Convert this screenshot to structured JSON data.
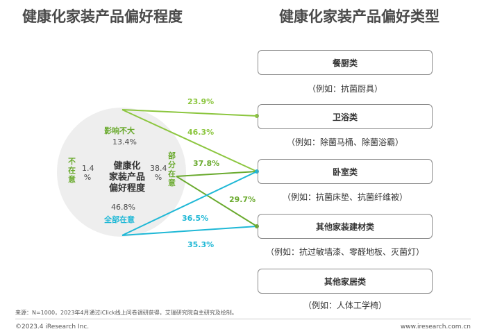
{
  "titles": {
    "left": "健康化家装产品偏好程度",
    "right": "健康化家装产品偏好类型"
  },
  "chart_data": {
    "type": "pie",
    "center_label": "健康化家装产品偏好程度",
    "slices": [
      {
        "label": "影响不大",
        "value": 13.4,
        "value_text": "13.4%"
      },
      {
        "label": "不在意",
        "value": 1.4,
        "value_text": "1.4%"
      },
      {
        "label": "部分在意",
        "value": 38.4,
        "value_text": "38.4%"
      },
      {
        "label": "全部在意",
        "value": 46.8,
        "value_text": "46.8%"
      }
    ],
    "links": [
      {
        "from": "影响不大",
        "to": "卫浴类",
        "value": 23.9,
        "text": "23.9%",
        "color": "#8cc63f"
      },
      {
        "from": "影响不大",
        "to": "卧室类",
        "value": 46.3,
        "text": "46.3%",
        "color": "#8cc63f"
      },
      {
        "from": "部分在意",
        "to": "卧室类",
        "value": 37.8,
        "text": "37.8%",
        "color": "#6aaa2e"
      },
      {
        "from": "部分在意",
        "to": "其他家装建材类",
        "value": 29.7,
        "text": "29.7%",
        "color": "#6aaa2e"
      },
      {
        "from": "全部在意",
        "to": "卧室类",
        "value": 36.5,
        "text": "36.5%",
        "color": "#1fb8d6"
      },
      {
        "from": "全部在意",
        "to": "其他家装建材类",
        "value": 35.3,
        "text": "35.3%",
        "color": "#1fb8d6"
      }
    ]
  },
  "circle": {
    "center_lines": [
      "健康化",
      "家装产品",
      "偏好程度"
    ],
    "influence_label": "影响不大",
    "influence_value": "13.4%",
    "notcare_chars": [
      "不",
      "在",
      "意"
    ],
    "notcare_value_num": "1.4",
    "notcare_value_pct": "%",
    "partial_chars": [
      "部",
      "分",
      "在",
      "意"
    ],
    "partial_value_num": "38.4",
    "partial_value_pct": "%",
    "all_value": "46.8%",
    "all_label": "全部在意"
  },
  "categories": [
    {
      "name": "餐厨类",
      "example": "（例如：抗菌厨具）"
    },
    {
      "name": "卫浴类",
      "example": "（例如：除菌马桶、除菌浴霸）"
    },
    {
      "name": "卧室类",
      "example": "（例如：抗菌床垫、抗菌纤维被）"
    },
    {
      "name": "其他家装建材类",
      "example": "（例如：抗过敏墙漆、零醛地板、灭菌灯）"
    },
    {
      "name": "其他家居类",
      "example": "（例如：人体工学椅）"
    }
  ],
  "colors": {
    "green_light": "#8cc63f",
    "green_dark": "#6aaa2e",
    "blue": "#1fb8d6",
    "circle_fill": "#eeeeee"
  },
  "footer": {
    "source": "来源：N=1000，2023年4月通过iClick线上问卷调研获得，艾瑞研究院自主研究及绘制。",
    "copyright": "©2023.4 iResearch Inc.",
    "url": "www.iresearch.com.cn"
  }
}
